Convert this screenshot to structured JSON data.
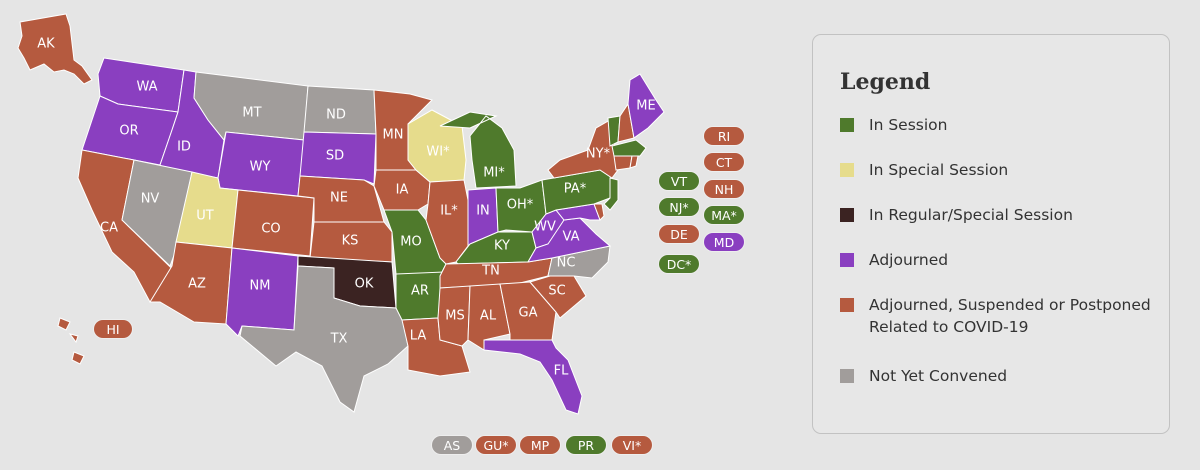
{
  "colors": {
    "session": "#4f7a2c",
    "special": "#e6dc8c",
    "regular_special": "#3b2322",
    "adjourned": "#8a3fc0",
    "covid": "#b55a3f",
    "not_convened": "#a19d9b"
  },
  "legend": {
    "title": "Legend",
    "items": [
      {
        "label": "In Session",
        "status": "session"
      },
      {
        "label": "In Special Session",
        "status": "special"
      },
      {
        "label": "In Regular/Special Session",
        "status": "regular_special"
      },
      {
        "label": "Adjourned",
        "status": "adjourned"
      },
      {
        "label": "Adjourned, Suspended or Postponed Related to COVID-19",
        "status": "covid"
      },
      {
        "label": "Not Yet Convened",
        "status": "not_convened"
      }
    ]
  },
  "states": [
    {
      "label": "AK",
      "status": "covid"
    },
    {
      "label": "WA",
      "status": "adjourned"
    },
    {
      "label": "OR",
      "status": "adjourned"
    },
    {
      "label": "CA",
      "status": "covid"
    },
    {
      "label": "ID",
      "status": "adjourned"
    },
    {
      "label": "NV",
      "status": "not_convened"
    },
    {
      "label": "MT",
      "status": "not_convened"
    },
    {
      "label": "WY",
      "status": "adjourned"
    },
    {
      "label": "UT",
      "status": "special"
    },
    {
      "label": "AZ",
      "status": "covid"
    },
    {
      "label": "CO",
      "status": "covid"
    },
    {
      "label": "NM",
      "status": "adjourned"
    },
    {
      "label": "ND",
      "status": "not_convened"
    },
    {
      "label": "SD",
      "status": "adjourned"
    },
    {
      "label": "NE",
      "status": "covid"
    },
    {
      "label": "KS",
      "status": "covid"
    },
    {
      "label": "OK",
      "status": "regular_special"
    },
    {
      "label": "TX",
      "status": "not_convened"
    },
    {
      "label": "MN",
      "status": "covid"
    },
    {
      "label": "IA",
      "status": "covid"
    },
    {
      "label": "MO",
      "status": "session"
    },
    {
      "label": "AR",
      "status": "session"
    },
    {
      "label": "LA",
      "status": "covid"
    },
    {
      "label": "WI*",
      "status": "special"
    },
    {
      "label": "IL*",
      "status": "covid"
    },
    {
      "label": "MI*",
      "status": "session"
    },
    {
      "label": "IN",
      "status": "adjourned"
    },
    {
      "label": "OH*",
      "status": "session"
    },
    {
      "label": "KY",
      "status": "session"
    },
    {
      "label": "TN",
      "status": "covid"
    },
    {
      "label": "MS",
      "status": "covid"
    },
    {
      "label": "AL",
      "status": "covid"
    },
    {
      "label": "GA",
      "status": "covid"
    },
    {
      "label": "SC",
      "status": "covid"
    },
    {
      "label": "NC",
      "status": "not_convened"
    },
    {
      "label": "FL",
      "status": "adjourned"
    },
    {
      "label": "WV",
      "status": "adjourned"
    },
    {
      "label": "VA",
      "status": "adjourned"
    },
    {
      "label": "PA*",
      "status": "session"
    },
    {
      "label": "NY*",
      "status": "covid"
    },
    {
      "label": "ME",
      "status": "adjourned"
    },
    {
      "label": "HI",
      "status": "covid"
    }
  ],
  "small_states": [
    {
      "label": "RI",
      "status": "covid"
    },
    {
      "label": "CT",
      "status": "covid"
    },
    {
      "label": "VT",
      "status": "session"
    },
    {
      "label": "NH",
      "status": "covid"
    },
    {
      "label": "NJ*",
      "status": "session"
    },
    {
      "label": "MA*",
      "status": "session"
    },
    {
      "label": "DE",
      "status": "covid"
    },
    {
      "label": "MD",
      "status": "adjourned"
    },
    {
      "label": "DC*",
      "status": "session"
    }
  ],
  "territories": [
    {
      "label": "AS",
      "status": "not_convened"
    },
    {
      "label": "GU*",
      "status": "covid"
    },
    {
      "label": "MP",
      "status": "covid"
    },
    {
      "label": "PR",
      "status": "session"
    },
    {
      "label": "VI*",
      "status": "covid"
    }
  ]
}
